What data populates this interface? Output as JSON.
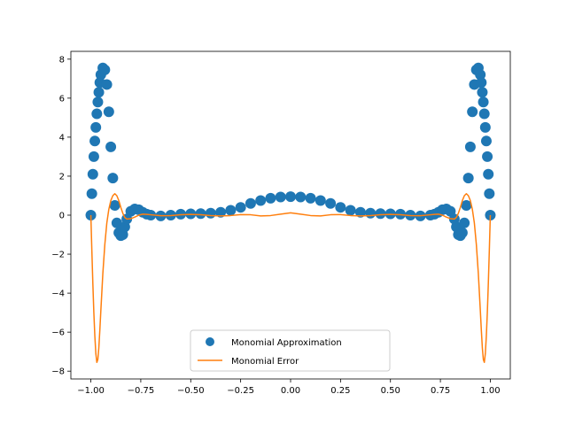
{
  "chart_data": {
    "type": "scatter",
    "title": "",
    "xlabel": "",
    "ylabel": "",
    "xlim": [
      -1.1,
      1.1
    ],
    "ylim": [
      -8.4,
      8.4
    ],
    "xticks": [
      -1.0,
      -0.75,
      -0.5,
      -0.25,
      0.0,
      0.25,
      0.5,
      0.75,
      1.0
    ],
    "xtick_labels": [
      "−1.00",
      "−0.75",
      "−0.50",
      "−0.25",
      "0.00",
      "0.25",
      "0.50",
      "0.75",
      "1.00"
    ],
    "yticks": [
      -8,
      -6,
      -4,
      -2,
      0,
      2,
      4,
      6,
      8
    ],
    "ytick_labels": [
      "−8",
      "−6",
      "−4",
      "−2",
      "0",
      "2",
      "4",
      "6",
      "8"
    ],
    "grid": false,
    "legend_position": "lower-center",
    "series": [
      {
        "name": "Monomial Approximation",
        "kind": "scatter",
        "color": "#1f77b4",
        "x": [
          -1.0,
          -0.995,
          -0.99,
          -0.985,
          -0.98,
          -0.975,
          -0.97,
          -0.965,
          -0.96,
          -0.955,
          -0.95,
          -0.94,
          -0.93,
          -0.92,
          -0.91,
          -0.9,
          -0.89,
          -0.88,
          -0.87,
          -0.86,
          -0.85,
          -0.84,
          -0.83,
          -0.82,
          -0.8,
          -0.78,
          -0.76,
          -0.74,
          -0.72,
          -0.7,
          -0.65,
          -0.6,
          -0.55,
          -0.5,
          -0.45,
          -0.4,
          -0.35,
          -0.3,
          -0.25,
          -0.2,
          -0.15,
          -0.1,
          -0.05,
          0.0,
          0.05,
          0.1,
          0.15,
          0.2,
          0.25,
          0.3,
          0.35,
          0.4,
          0.45,
          0.5,
          0.55,
          0.6,
          0.65,
          0.7,
          0.72,
          0.74,
          0.76,
          0.78,
          0.8,
          0.82,
          0.83,
          0.84,
          0.85,
          0.86,
          0.87,
          0.88,
          0.89,
          0.9,
          0.91,
          0.92,
          0.93,
          0.94,
          0.95,
          0.955,
          0.96,
          0.965,
          0.97,
          0.975,
          0.98,
          0.985,
          0.99,
          0.995,
          1.0
        ],
        "y": [
          0.0,
          1.1,
          2.1,
          3.0,
          3.8,
          4.5,
          5.2,
          5.8,
          6.3,
          6.8,
          7.2,
          7.55,
          7.45,
          6.7,
          5.3,
          3.5,
          1.9,
          0.5,
          -0.4,
          -0.9,
          -1.05,
          -1.0,
          -0.6,
          -0.2,
          0.2,
          0.32,
          0.28,
          0.15,
          0.05,
          0.0,
          -0.04,
          0.0,
          0.05,
          0.07,
          0.08,
          0.1,
          0.15,
          0.25,
          0.4,
          0.6,
          0.75,
          0.87,
          0.93,
          0.95,
          0.93,
          0.87,
          0.75,
          0.6,
          0.4,
          0.25,
          0.15,
          0.1,
          0.08,
          0.07,
          0.05,
          0.0,
          -0.04,
          0.0,
          0.05,
          0.15,
          0.28,
          0.32,
          0.2,
          -0.2,
          -0.6,
          -1.0,
          -1.05,
          -0.9,
          -0.4,
          0.5,
          1.9,
          3.5,
          5.3,
          6.7,
          7.45,
          7.55,
          7.2,
          6.8,
          6.3,
          5.8,
          5.2,
          4.5,
          3.8,
          3.0,
          2.1,
          1.1,
          0.0
        ]
      },
      {
        "name": "Monomial Error",
        "kind": "line",
        "color": "#ff7f0e",
        "x": [
          -1.0,
          -0.995,
          -0.99,
          -0.985,
          -0.98,
          -0.975,
          -0.97,
          -0.965,
          -0.96,
          -0.955,
          -0.95,
          -0.94,
          -0.93,
          -0.92,
          -0.91,
          -0.9,
          -0.89,
          -0.88,
          -0.87,
          -0.86,
          -0.85,
          -0.84,
          -0.83,
          -0.82,
          -0.8,
          -0.78,
          -0.76,
          -0.74,
          -0.72,
          -0.7,
          -0.65,
          -0.6,
          -0.55,
          -0.5,
          -0.45,
          -0.4,
          -0.35,
          -0.3,
          -0.25,
          -0.2,
          -0.15,
          -0.1,
          -0.05,
          0.0,
          0.05,
          0.1,
          0.15,
          0.2,
          0.25,
          0.3,
          0.35,
          0.4,
          0.45,
          0.5,
          0.55,
          0.6,
          0.65,
          0.7,
          0.72,
          0.74,
          0.76,
          0.78,
          0.8,
          0.82,
          0.83,
          0.84,
          0.85,
          0.86,
          0.87,
          0.88,
          0.89,
          0.9,
          0.91,
          0.92,
          0.93,
          0.94,
          0.95,
          0.955,
          0.96,
          0.965,
          0.97,
          0.975,
          0.98,
          0.985,
          0.99,
          0.995,
          1.0
        ],
        "y": [
          0.0,
          -1.8,
          -3.5,
          -5.0,
          -6.2,
          -7.1,
          -7.55,
          -7.4,
          -6.8,
          -5.9,
          -4.9,
          -3.0,
          -1.5,
          -0.4,
          0.3,
          0.75,
          1.0,
          1.1,
          1.0,
          0.75,
          0.4,
          0.1,
          -0.12,
          -0.2,
          -0.18,
          -0.1,
          0.0,
          0.05,
          0.04,
          0.02,
          -0.03,
          -0.02,
          0.02,
          0.04,
          0.02,
          -0.02,
          -0.04,
          -0.02,
          0.03,
          0.02,
          -0.04,
          -0.02,
          0.05,
          0.12,
          0.05,
          -0.02,
          -0.04,
          0.02,
          0.03,
          -0.02,
          -0.04,
          -0.02,
          0.02,
          0.04,
          0.02,
          -0.02,
          -0.03,
          0.02,
          0.04,
          0.05,
          0.0,
          -0.1,
          -0.18,
          -0.2,
          -0.12,
          0.1,
          0.4,
          0.75,
          1.0,
          1.1,
          1.0,
          0.75,
          0.3,
          -0.4,
          -1.5,
          -3.0,
          -4.9,
          -5.9,
          -6.8,
          -7.4,
          -7.55,
          -7.1,
          -6.2,
          -5.0,
          -3.5,
          -1.8,
          0.0
        ]
      }
    ]
  }
}
